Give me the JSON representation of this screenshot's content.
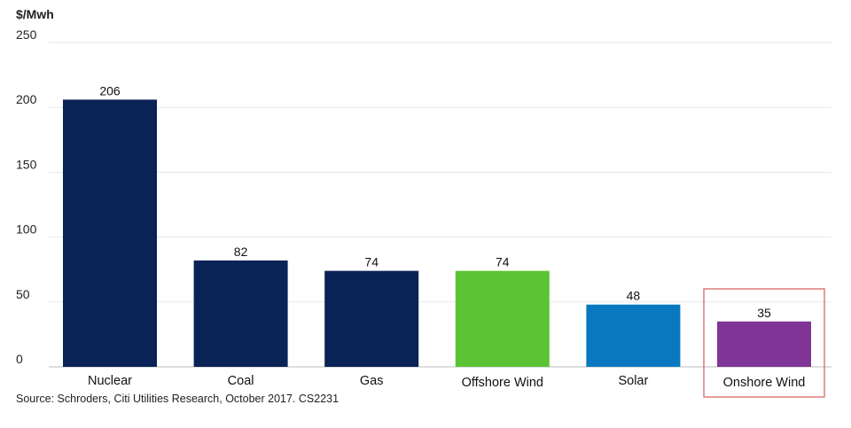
{
  "chart_data": {
    "type": "bar",
    "ylabel": "$/Mwh",
    "categories": [
      "Nuclear",
      "Coal",
      "Gas",
      "Offshore Wind",
      "Solar",
      "Onshore Wind"
    ],
    "values": [
      206,
      82,
      74,
      74,
      48,
      35
    ],
    "value_labels": [
      "206",
      "82",
      "74",
      "74",
      "48",
      "35"
    ],
    "bar_colors": [
      "#0a2356",
      "#0a2356",
      "#0a2356",
      "#5bc435",
      "#0878c1",
      "#7f3596"
    ],
    "ylim": [
      0,
      250
    ],
    "yticks": [
      "0",
      "50",
      "100",
      "150",
      "200",
      "250"
    ],
    "ytick_values": [
      0,
      50,
      100,
      150,
      200,
      250
    ],
    "grid": true,
    "highlight_category": "Onshore Wind",
    "highlight_color": "#d35a5a",
    "source": "Source: Schroders, Citi Utilities Research, October 2017. CS2231"
  }
}
